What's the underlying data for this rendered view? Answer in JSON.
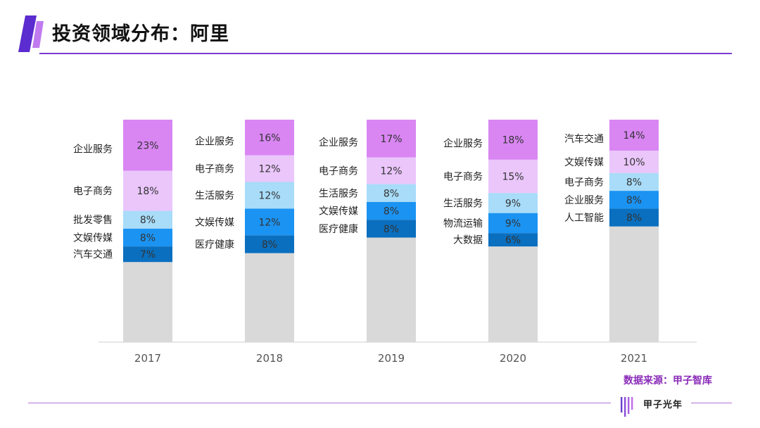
{
  "page": {
    "title": "投资领域分布：阿里",
    "source": "数据来源：甲子智库",
    "logo_text": "甲子光年",
    "brand_color": "#7c3ad0"
  },
  "chart_data": {
    "type": "bar",
    "stacked": true,
    "title": "",
    "xlabel": "",
    "ylabel": "",
    "ylim": [
      0,
      100
    ],
    "grid": false,
    "legend": "none",
    "categories": [
      "2017",
      "2018",
      "2019",
      "2020",
      "2021"
    ],
    "columns": [
      {
        "year": "2017",
        "segments": [
          {
            "label": "企业服务",
            "value": 23,
            "text": "23%",
            "color": "#d986f3"
          },
          {
            "label": "电子商务",
            "value": 18,
            "text": "18%",
            "color": "#eac6fb"
          },
          {
            "label": "批发零售",
            "value": 8,
            "text": "8%",
            "color": "#a8dcf9"
          },
          {
            "label": "文娱传媒",
            "value": 8,
            "text": "8%",
            "color": "#1b93f2"
          },
          {
            "label": "汽车交通",
            "value": 7,
            "text": "7%",
            "color": "#0a6fbf"
          }
        ]
      },
      {
        "year": "2018",
        "segments": [
          {
            "label": "企业服务",
            "value": 16,
            "text": "16%",
            "color": "#d986f3"
          },
          {
            "label": "电子商务",
            "value": 12,
            "text": "12%",
            "color": "#eac6fb"
          },
          {
            "label": "生活服务",
            "value": 12,
            "text": "12%",
            "color": "#a8dcf9"
          },
          {
            "label": "文娱传媒",
            "value": 12,
            "text": "12%",
            "color": "#1b93f2"
          },
          {
            "label": "医疗健康",
            "value": 8,
            "text": "8%",
            "color": "#0a6fbf"
          }
        ]
      },
      {
        "year": "2019",
        "segments": [
          {
            "label": "企业服务",
            "value": 17,
            "text": "17%",
            "color": "#d986f3"
          },
          {
            "label": "电子商务",
            "value": 12,
            "text": "12%",
            "color": "#eac6fb"
          },
          {
            "label": "生活服务",
            "value": 8,
            "text": "8%",
            "color": "#a8dcf9"
          },
          {
            "label": "文娱传媒",
            "value": 8,
            "text": "8%",
            "color": "#1b93f2"
          },
          {
            "label": "医疗健康",
            "value": 8,
            "text": "8%",
            "color": "#0a6fbf"
          }
        ]
      },
      {
        "year": "2020",
        "segments": [
          {
            "label": "企业服务",
            "value": 18,
            "text": "18%",
            "color": "#d986f3"
          },
          {
            "label": "电子商务",
            "value": 15,
            "text": "15%",
            "color": "#eac6fb"
          },
          {
            "label": "生活服务",
            "value": 9,
            "text": "9%",
            "color": "#a8dcf9"
          },
          {
            "label": "物流运输",
            "value": 9,
            "text": "9%",
            "color": "#1b93f2"
          },
          {
            "label": "大数据",
            "value": 6,
            "text": "6%",
            "color": "#0a6fbf"
          }
        ]
      },
      {
        "year": "2021",
        "segments": [
          {
            "label": "汽车交通",
            "value": 14,
            "text": "14%",
            "color": "#d986f3"
          },
          {
            "label": "文娱传媒",
            "value": 10,
            "text": "10%",
            "color": "#eac6fb"
          },
          {
            "label": "电子商务",
            "value": 8,
            "text": "8%",
            "color": "#a8dcf9"
          },
          {
            "label": "企业服务",
            "value": 8,
            "text": "8%",
            "color": "#1b93f2"
          },
          {
            "label": "人工智能",
            "value": 8,
            "text": "8%",
            "color": "#0a6fbf"
          }
        ]
      }
    ],
    "remainder_color": "#d9d9d9"
  }
}
